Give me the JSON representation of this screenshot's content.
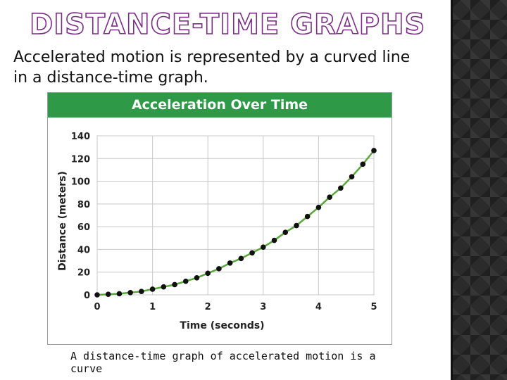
{
  "slide": {
    "title": "DISTANCE-TIME GRAPHS",
    "intro": "Accelerated motion is represented by a curved line in a distance-time graph.",
    "caption": "A distance-time graph of accelerated motion is a curve"
  },
  "colors": {
    "title_outline": "#7b2d87",
    "header_green": "#2e9a47",
    "curve_green": "#5aa83a",
    "point_black": "#111111",
    "grid": "#c8c8c8",
    "side_panel": "#2b2b2b"
  },
  "chart_data": {
    "type": "line",
    "title": "Acceleration Over Time",
    "xlabel": "Time (seconds)",
    "ylabel": "Distance (meters)",
    "xlim": [
      0,
      5
    ],
    "ylim": [
      0,
      140
    ],
    "x_ticks": [
      0,
      1,
      2,
      3,
      4,
      5
    ],
    "y_ticks": [
      0,
      20,
      40,
      60,
      80,
      100,
      120,
      140
    ],
    "grid": true,
    "legend": "none",
    "series": [
      {
        "x": [
          0,
          0.2,
          0.4,
          0.6,
          0.8,
          1.0,
          1.2,
          1.4,
          1.6,
          1.8,
          2.0,
          2.2,
          2.4,
          2.6,
          2.8,
          3.0,
          3.2,
          3.4,
          3.6,
          3.8,
          4.0,
          4.2,
          4.4,
          4.6,
          4.8,
          5.0
        ],
        "y": [
          0,
          0.5,
          1,
          2,
          3,
          5,
          7,
          9,
          12,
          15,
          19,
          23,
          28,
          32,
          37,
          42,
          48,
          55,
          61,
          69,
          77,
          86,
          94,
          104,
          115,
          127
        ]
      }
    ]
  }
}
